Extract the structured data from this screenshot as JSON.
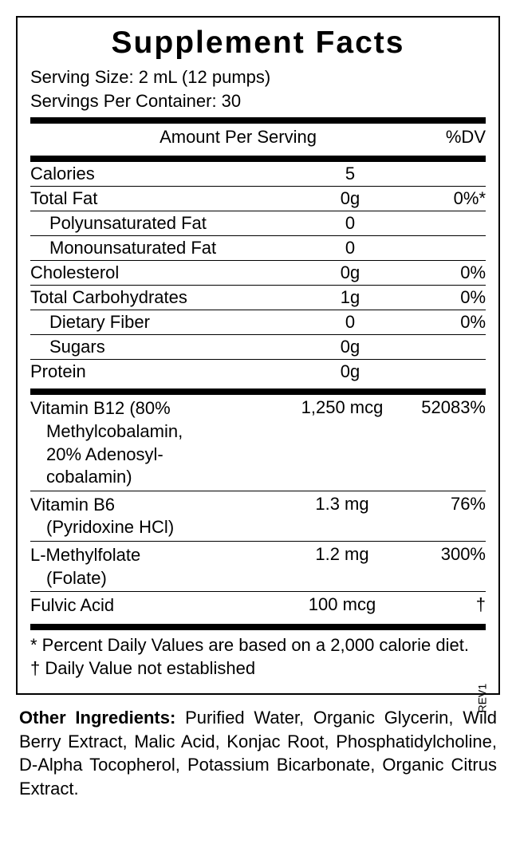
{
  "panel": {
    "title": "Supplement Facts",
    "serving_size": "Serving Size: 2 mL (12 pumps)",
    "servings_per_container": "Servings Per Container: 30",
    "header_amount": "Amount Per Serving",
    "header_dv": "%DV",
    "rows": [
      {
        "name": "Calories",
        "amount": "5",
        "dv": "",
        "indent": false
      },
      {
        "name": "Total Fat",
        "amount": "0g",
        "dv": "0%*",
        "indent": false
      },
      {
        "name": "Polyunsaturated Fat",
        "amount": "0",
        "dv": "",
        "indent": true
      },
      {
        "name": "Monounsaturated Fat",
        "amount": "0",
        "dv": "",
        "indent": true
      },
      {
        "name": "Cholesterol",
        "amount": "0g",
        "dv": "0%",
        "indent": false
      },
      {
        "name": "Total Carbohydrates",
        "amount": "1g",
        "dv": "0%",
        "indent": false
      },
      {
        "name": "Dietary Fiber",
        "amount": "0",
        "dv": "0%",
        "indent": true
      },
      {
        "name": "Sugars",
        "amount": "0g",
        "dv": "",
        "indent": true
      },
      {
        "name": "Protein",
        "amount": "0g",
        "dv": "",
        "indent": false
      }
    ],
    "vitamins": [
      {
        "name": "Vitamin B12 (80%",
        "sub1": "Methylcobalamin,",
        "sub2": "20% Adenosyl-",
        "sub3": "cobalamin)",
        "amount": "1,250 mcg",
        "dv": "52083%"
      },
      {
        "name": "Vitamin B6",
        "sub1": "(Pyridoxine HCl)",
        "sub2": "",
        "sub3": "",
        "amount": "1.3 mg",
        "dv": "76%"
      },
      {
        "name": "L-Methylfolate",
        "sub1": "(Folate)",
        "sub2": "",
        "sub3": "",
        "amount": "1.2 mg",
        "dv": "300%"
      },
      {
        "name": "Fulvic Acid",
        "sub1": "",
        "sub2": "",
        "sub3": "",
        "amount": "100 mcg",
        "dv": "†"
      }
    ],
    "footnote1": "* Percent Daily Values are based on a 2,000 calorie diet.",
    "footnote2": "† Daily Value not established",
    "rev": "REV1"
  },
  "other": {
    "label": "Other Ingredients:",
    "text": " Purified Water, Organic Glycerin, Wild Berry Extract, Malic Acid, Konjac Root, Phosphatidyl­choline, D-Alpha Tocopherol, Potassium Bicarbonate, Organic Citrus Extract."
  },
  "style": {
    "border_color": "#000000",
    "background": "#ffffff",
    "title_fontsize": 39,
    "body_fontsize": 22
  }
}
